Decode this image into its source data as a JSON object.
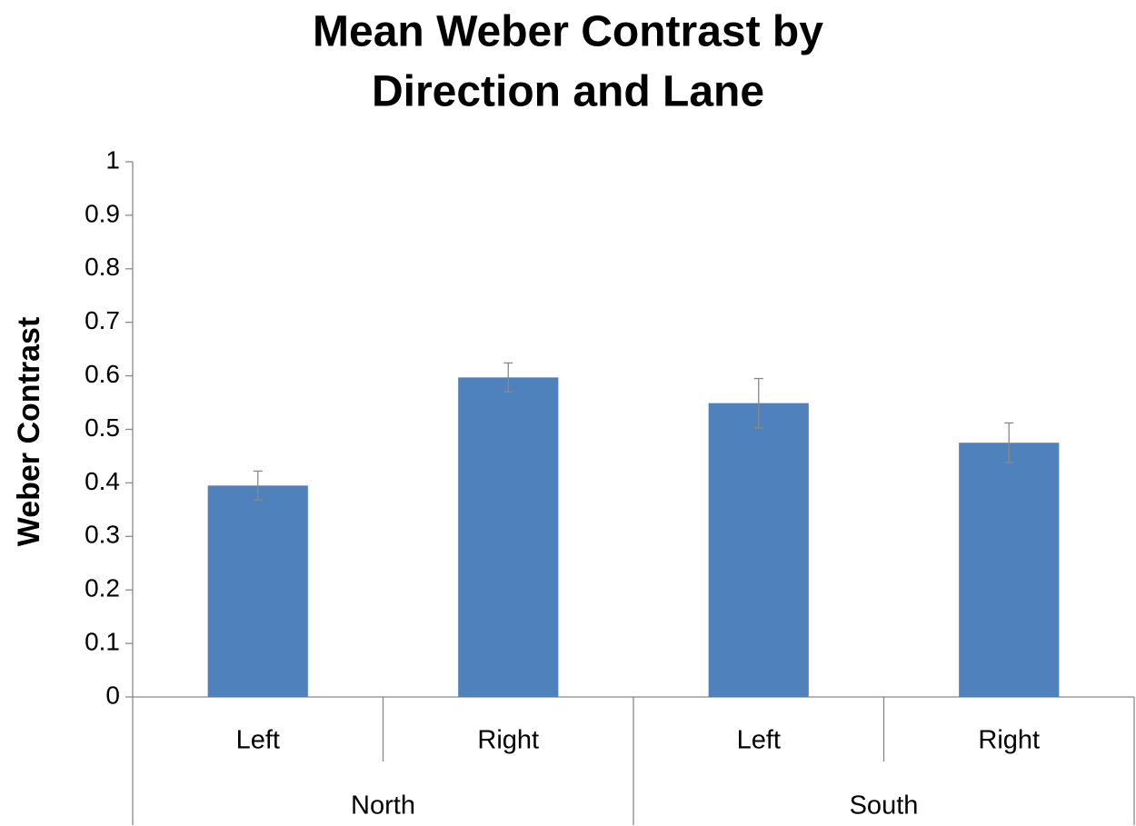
{
  "chart_data": {
    "type": "bar",
    "title": [
      "Mean Weber Contrast by",
      "Direction and Lane"
    ],
    "ylabel": "Weber Contrast",
    "groups": [
      {
        "name": "North",
        "categories": [
          "Left",
          "Right"
        ],
        "values": [
          0.395,
          0.597
        ],
        "errors": [
          0.027,
          0.027
        ]
      },
      {
        "name": "South",
        "categories": [
          "Left",
          "Right"
        ],
        "values": [
          0.549,
          0.475
        ],
        "errors": [
          0.046,
          0.037
        ]
      }
    ],
    "color": "#4f81bd",
    "ylim": [
      0,
      1
    ],
    "yticks": [
      0,
      0.1,
      0.2,
      0.3,
      0.4,
      0.5,
      0.6,
      0.7,
      0.8,
      0.9,
      1
    ],
    "grid": false
  }
}
